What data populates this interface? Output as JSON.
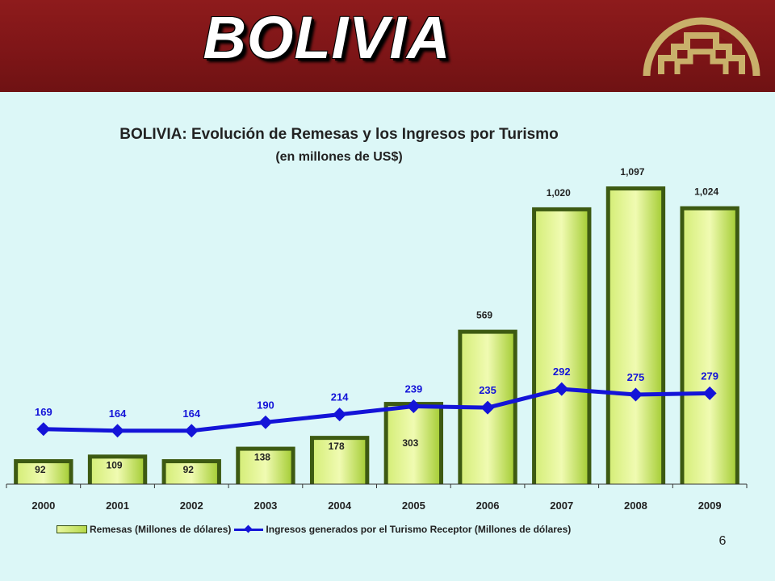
{
  "header": {
    "title": "BOLIVIA"
  },
  "page_number": "6",
  "chart_data": {
    "type": "bar",
    "title": "BOLIVIA: Evolución  de Remesas  y  los  Ingresos  por  Turismo",
    "subtitle": "(en millones de US$)",
    "categories": [
      "2000",
      "2001",
      "2002",
      "2003",
      "2004",
      "2005",
      "2006",
      "2007",
      "2008",
      "2009"
    ],
    "series": [
      {
        "name": "Remesas  (Millones de dólares)",
        "type": "bar",
        "values": [
          92,
          109,
          92,
          138,
          178,
          303,
          569,
          1020,
          1097,
          1024
        ],
        "labels": [
          "92",
          "109",
          "92",
          "138",
          "178",
          "303",
          "569",
          "1,020",
          "1,097",
          "1,024"
        ],
        "color": "#b6d94a"
      },
      {
        "name": "Ingresos generados por el  Turismo Receptor  (Millones de dólares)",
        "type": "line",
        "values": [
          169,
          164,
          164,
          190,
          214,
          239,
          235,
          292,
          275,
          279
        ],
        "labels": [
          "169",
          "164",
          "164",
          "190",
          "214",
          "239",
          "235",
          "292",
          "275",
          "279"
        ],
        "color": "#1414d8"
      }
    ],
    "ylim": [
      0,
      1100
    ],
    "grid": false,
    "legend": "bottom",
    "colors": {
      "bar_fill": "#b6d94a",
      "bar_edge": "#3d5a12",
      "line": "#1414d8",
      "line_label": "#1414d8",
      "bar_label": "#222222"
    }
  }
}
